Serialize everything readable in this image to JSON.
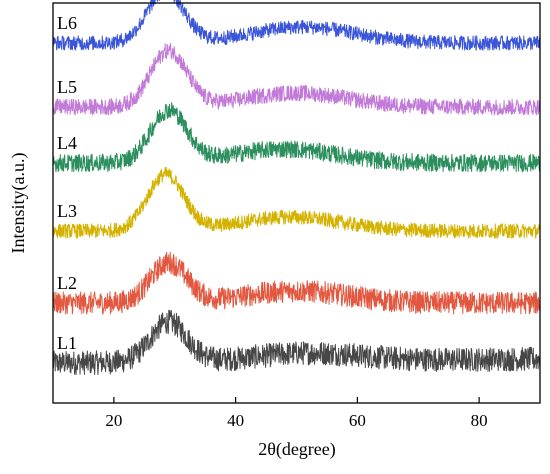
{
  "chart_data": {
    "type": "line",
    "title": "",
    "xlabel": "2θ(degree)",
    "ylabel": "Intensity(a.u.)",
    "xlim": [
      10,
      90
    ],
    "x_ticks": [
      20,
      40,
      60,
      80
    ],
    "y_ticks_shown": false,
    "grid": false,
    "legend": "inline labels on the left of each trace",
    "series": [
      {
        "label": "L1",
        "color": "#474747",
        "offset": 0.1,
        "peak_x": 29,
        "peak_height": 0.1,
        "broad_x": 52,
        "broad_height": 0.02,
        "tail_end": 0.01,
        "noise": 0.03
      },
      {
        "label": "L2",
        "color": "#e2573f",
        "offset": 0.25,
        "peak_x": 29,
        "peak_height": 0.1,
        "broad_x": 50,
        "broad_height": 0.03,
        "tail_end": 0.0,
        "noise": 0.028
      },
      {
        "label": "L3",
        "color": "#d4b200",
        "offset": 0.43,
        "peak_x": 28.5,
        "peak_height": 0.14,
        "broad_x": 49,
        "broad_height": 0.035,
        "tail_end": 0.0,
        "noise": 0.018
      },
      {
        "label": "L4",
        "color": "#2a8f5c",
        "offset": 0.6,
        "peak_x": 29,
        "peak_height": 0.13,
        "broad_x": 48,
        "broad_height": 0.035,
        "tail_end": 0.0,
        "noise": 0.022
      },
      {
        "label": "L5",
        "color": "#c27ad8",
        "offset": 0.74,
        "peak_x": 29,
        "peak_height": 0.14,
        "broad_x": 50,
        "broad_height": 0.035,
        "tail_end": 0.0,
        "noise": 0.02
      },
      {
        "label": "L6",
        "color": "#3a55d8",
        "offset": 0.9,
        "peak_x": 28.5,
        "peak_height": 0.13,
        "broad_x": 51,
        "broad_height": 0.04,
        "tail_end": 0.0,
        "noise": 0.018
      }
    ]
  }
}
